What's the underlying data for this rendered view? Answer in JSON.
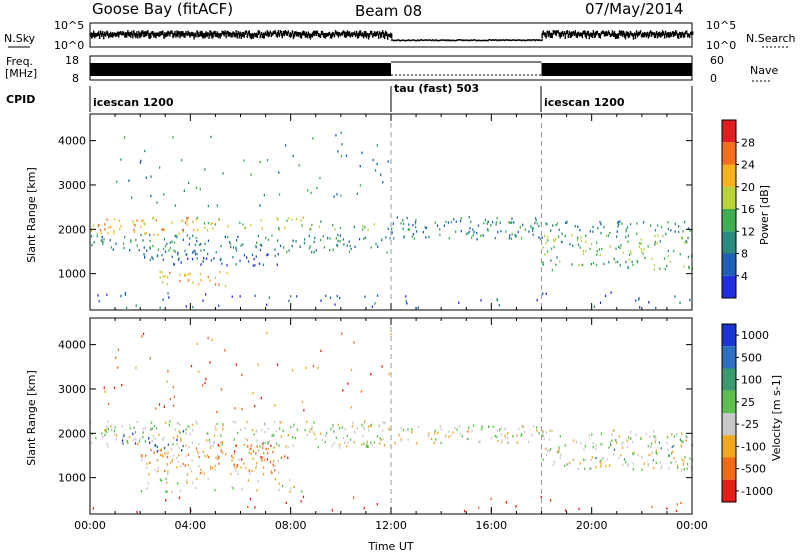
{
  "header": {
    "title": "Goose Bay (fitACF)",
    "beam": "Beam 08",
    "date": "07/May/2014"
  },
  "strips": {
    "nsky_label": "N.Sky",
    "nsky_ticks": [
      "10^5",
      "10^0"
    ],
    "nsearch_label": "N.Search",
    "nsearch_ticks": [
      "10^5",
      "10^0"
    ],
    "freq_label": "Freq.",
    "freq_unit": "[MHz]",
    "freq_ticks": [
      "18",
      "8"
    ],
    "nave_label": "Nave",
    "nave_ticks": [
      "60",
      "0"
    ],
    "cpid_label": "CPID",
    "cpid_segments": [
      {
        "label": "icescan 1200",
        "start_h": 0,
        "end_h": 12
      },
      {
        "label": "tau (fast) 503",
        "start_h": 12,
        "end_h": 18
      },
      {
        "label": "icescan 1200",
        "start_h": 18,
        "end_h": 24
      }
    ]
  },
  "chart_data": [
    {
      "type": "heatmap",
      "parameter": "Power",
      "xlabel": "",
      "ylabel": "Slant Range [km]",
      "xlim": [
        0,
        24
      ],
      "ylim": [
        180,
        4600
      ],
      "yticks": [
        "1000",
        "2000",
        "3000",
        "4000"
      ],
      "colorbar_label": "Power [dB]",
      "colorbar_range": [
        0,
        32
      ],
      "colorbar_ticks": [
        "4",
        "8",
        "12",
        "16",
        "20",
        "24",
        "28"
      ],
      "colorbar_colors": [
        "#2030e0",
        "#1e5fb5",
        "#2a8a80",
        "#3fae50",
        "#b8d43a",
        "#f5b21e",
        "#f07020",
        "#e02020"
      ],
      "scatter_regions": [
        {
          "x": [
            0.0,
            4.0
          ],
          "y": [
            1900,
            2300
          ],
          "level": 5,
          "density": 0.55
        },
        {
          "x": [
            4.0,
            8.5
          ],
          "y": [
            2000,
            2300
          ],
          "level": 4,
          "density": 0.45
        },
        {
          "x": [
            8.5,
            12.0
          ],
          "y": [
            2000,
            2200
          ],
          "level": 3,
          "density": 0.35
        },
        {
          "x": [
            0.0,
            12.0
          ],
          "y": [
            1500,
            1900
          ],
          "level": 2,
          "density": 0.5
        },
        {
          "x": [
            2.0,
            7.5
          ],
          "y": [
            1200,
            1500
          ],
          "level": 1,
          "density": 0.55
        },
        {
          "x": [
            2.5,
            5.5
          ],
          "y": [
            750,
            1100
          ],
          "level": 5,
          "density": 0.45
        },
        {
          "x": [
            12.0,
            18.0
          ],
          "y": [
            1800,
            2300
          ],
          "level": 2,
          "density": 0.6
        },
        {
          "x": [
            18.0,
            24.0
          ],
          "y": [
            1900,
            2200
          ],
          "level": 2,
          "density": 0.5
        },
        {
          "x": [
            18.0,
            24.0
          ],
          "y": [
            1400,
            1900
          ],
          "level": 3,
          "density": 0.45
        },
        {
          "x": [
            18.0,
            24.0
          ],
          "y": [
            1100,
            1400
          ],
          "level": 3,
          "density": 0.4
        },
        {
          "x": [
            0.0,
            24.0
          ],
          "y": [
            250,
            600
          ],
          "level": 1,
          "density": 0.12
        },
        {
          "x": [
            0.5,
            12.0
          ],
          "y": [
            2500,
            4300
          ],
          "level": 2,
          "density": 0.05
        }
      ]
    },
    {
      "type": "heatmap",
      "parameter": "Velocity",
      "xlabel": "Time UT",
      "ylabel": "Slant Range [km]",
      "xlim": [
        0,
        24
      ],
      "ylim": [
        180,
        4600
      ],
      "xticks": [
        "00:00",
        "04:00",
        "08:00",
        "12:00",
        "16:00",
        "20:00",
        "00:00"
      ],
      "yticks": [
        "1000",
        "2000",
        "3000",
        "4000"
      ],
      "colorbar_label": "Velocity [m s-1]",
      "colorbar_ticks": [
        "1000",
        "500",
        "100",
        "25",
        "-25",
        "-100",
        "-500",
        "-1000"
      ],
      "colorbar_colors": [
        "#1a35d0",
        "#2c70c0",
        "#3a9a70",
        "#5cc050",
        "#c8c8c8",
        "#f0a820",
        "#f06a18",
        "#e41e18"
      ],
      "scatter_regions": [
        {
          "x": [
            0.0,
            12.0
          ],
          "y": [
            1700,
            2300
          ],
          "level": 4,
          "density": 0.55
        },
        {
          "x": [
            2.0,
            7.5
          ],
          "y": [
            1100,
            1700
          ],
          "level": 5,
          "density": 0.6
        },
        {
          "x": [
            5.0,
            8.0
          ],
          "y": [
            1400,
            1800
          ],
          "level": 6,
          "density": 0.4
        },
        {
          "x": [
            1.0,
            4.0
          ],
          "y": [
            1600,
            2100
          ],
          "level": 0,
          "density": 0.18
        },
        {
          "x": [
            12.0,
            18.0
          ],
          "y": [
            1800,
            2200
          ],
          "level": 4,
          "density": 0.6
        },
        {
          "x": [
            18.0,
            24.0
          ],
          "y": [
            1200,
            2100
          ],
          "level": 4,
          "density": 0.5
        },
        {
          "x": [
            20.0,
            24.0
          ],
          "y": [
            1400,
            1900
          ],
          "level": 2,
          "density": 0.15
        },
        {
          "x": [
            2.0,
            8.5
          ],
          "y": [
            700,
            1000
          ],
          "level": 4,
          "density": 0.3
        },
        {
          "x": [
            0.0,
            24.0
          ],
          "y": [
            250,
            600
          ],
          "level": 7,
          "density": 0.06
        },
        {
          "x": [
            0.5,
            12.0
          ],
          "y": [
            2500,
            4300
          ],
          "level": 6,
          "density": 0.05
        }
      ]
    }
  ]
}
